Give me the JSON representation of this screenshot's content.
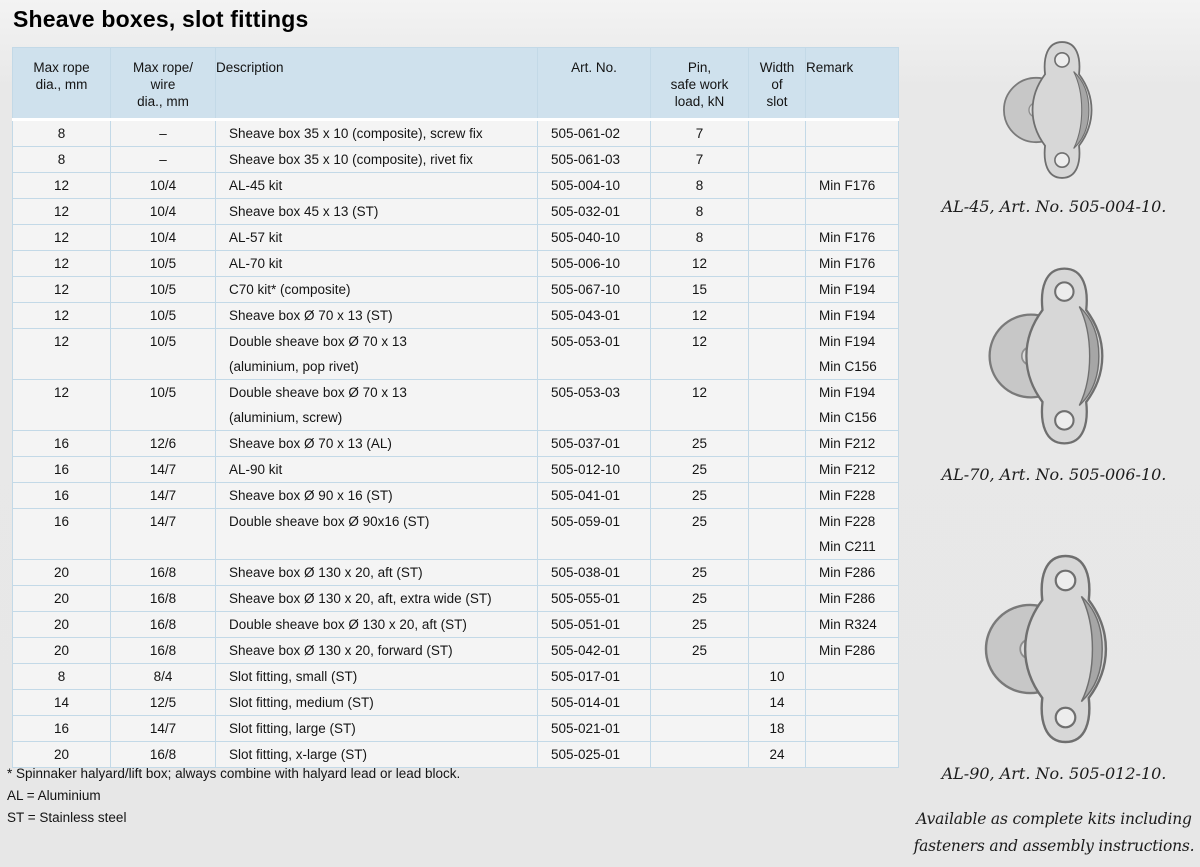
{
  "page_title": "Sheave boxes, slot fittings",
  "colors": {
    "header_bg": "#cfe1ed",
    "table_border": "#c3d9e7",
    "row_bg": "#f4f4f4",
    "page_bg": "#e7e7e7"
  },
  "table": {
    "columns": [
      {
        "key": "max_rope_dia",
        "label_lines": [
          "Max rope",
          "dia., mm"
        ]
      },
      {
        "key": "max_wire_dia",
        "label_lines": [
          "Max rope/",
          "wire",
          "dia., mm"
        ]
      },
      {
        "key": "description",
        "label_lines": [
          "Description"
        ]
      },
      {
        "key": "art_no",
        "label_lines": [
          "Art. No."
        ]
      },
      {
        "key": "pin_swl",
        "label_lines": [
          "Pin,",
          "safe work",
          "load, kN"
        ]
      },
      {
        "key": "slot_width",
        "label_lines": [
          "Width",
          "of",
          "slot"
        ]
      },
      {
        "key": "remark",
        "label_lines": [
          "Remark"
        ]
      }
    ],
    "rows": [
      {
        "max_rope_dia": "8",
        "max_wire_dia": "–",
        "description": [
          "Sheave box 35 x 10 (composite), screw fix"
        ],
        "art_no": "505-061-02",
        "pin_swl": "7",
        "slot_width": "",
        "remark": []
      },
      {
        "max_rope_dia": "8",
        "max_wire_dia": "–",
        "description": [
          "Sheave box 35 x 10 (composite), rivet fix"
        ],
        "art_no": "505-061-03",
        "pin_swl": "7",
        "slot_width": "",
        "remark": []
      },
      {
        "max_rope_dia": "12",
        "max_wire_dia": "10/4",
        "description": [
          "AL-45 kit"
        ],
        "art_no": "505-004-10",
        "pin_swl": "8",
        "slot_width": "",
        "remark": [
          "Min F176"
        ]
      },
      {
        "max_rope_dia": "12",
        "max_wire_dia": "10/4",
        "description": [
          "Sheave box 45 x 13 (ST)"
        ],
        "art_no": "505-032-01",
        "pin_swl": "8",
        "slot_width": "",
        "remark": []
      },
      {
        "max_rope_dia": "12",
        "max_wire_dia": "10/4",
        "description": [
          "AL-57 kit"
        ],
        "art_no": "505-040-10",
        "pin_swl": "8",
        "slot_width": "",
        "remark": [
          "Min F176"
        ]
      },
      {
        "max_rope_dia": "12",
        "max_wire_dia": "10/5",
        "description": [
          "AL-70 kit"
        ],
        "art_no": "505-006-10",
        "pin_swl": "12",
        "slot_width": "",
        "remark": [
          "Min F176"
        ]
      },
      {
        "max_rope_dia": "12",
        "max_wire_dia": "10/5",
        "description": [
          "C70 kit* (composite)"
        ],
        "art_no": "505-067-10",
        "pin_swl": "15",
        "slot_width": "",
        "remark": [
          "Min F194"
        ]
      },
      {
        "max_rope_dia": "12",
        "max_wire_dia": "10/5",
        "description": [
          "Sheave box Ø 70 x 13 (ST)"
        ],
        "art_no": "505-043-01",
        "pin_swl": "12",
        "slot_width": "",
        "remark": [
          "Min F194"
        ]
      },
      {
        "max_rope_dia": "12",
        "max_wire_dia": "10/5",
        "description": [
          "Double sheave box Ø 70 x 13",
          "(aluminium, pop rivet)"
        ],
        "art_no": "505-053-01",
        "pin_swl": "12",
        "slot_width": "",
        "remark": [
          "Min F194",
          "Min C156"
        ]
      },
      {
        "max_rope_dia": "12",
        "max_wire_dia": "10/5",
        "description": [
          "Double sheave box Ø 70 x 13",
          "(aluminium, screw)"
        ],
        "art_no": "505-053-03",
        "pin_swl": "12",
        "slot_width": "",
        "remark": [
          "Min F194",
          "Min C156"
        ]
      },
      {
        "max_rope_dia": "16",
        "max_wire_dia": "12/6",
        "description": [
          "Sheave box Ø 70 x 13 (AL)"
        ],
        "art_no": "505-037-01",
        "pin_swl": "25",
        "slot_width": "",
        "remark": [
          "Min F212"
        ]
      },
      {
        "max_rope_dia": "16",
        "max_wire_dia": "14/7",
        "description": [
          "AL-90 kit"
        ],
        "art_no": "505-012-10",
        "pin_swl": "25",
        "slot_width": "",
        "remark": [
          "Min F212"
        ]
      },
      {
        "max_rope_dia": "16",
        "max_wire_dia": "14/7",
        "description": [
          "Sheave box Ø 90 x 16 (ST)"
        ],
        "art_no": "505-041-01",
        "pin_swl": "25",
        "slot_width": "",
        "remark": [
          "Min F228"
        ]
      },
      {
        "max_rope_dia": "16",
        "max_wire_dia": "14/7",
        "description": [
          "Double sheave box Ø 90x16 (ST)"
        ],
        "art_no": "505-059-01",
        "pin_swl": "25",
        "slot_width": "",
        "remark": [
          "Min F228",
          "Min C211"
        ]
      },
      {
        "max_rope_dia": "20",
        "max_wire_dia": "16/8",
        "description": [
          "Sheave box Ø 130 x 20, aft (ST)"
        ],
        "art_no": "505-038-01",
        "pin_swl": "25",
        "slot_width": "",
        "remark": [
          "Min F286"
        ]
      },
      {
        "max_rope_dia": "20",
        "max_wire_dia": "16/8",
        "description": [
          "Sheave box Ø 130 x 20, aft, extra wide (ST)"
        ],
        "art_no": "505-055-01",
        "pin_swl": "25",
        "slot_width": "",
        "remark": [
          "Min F286"
        ]
      },
      {
        "max_rope_dia": "20",
        "max_wire_dia": "16/8",
        "description": [
          "Double sheave box Ø 130 x 20, aft (ST)"
        ],
        "art_no": "505-051-01",
        "pin_swl": "25",
        "slot_width": "",
        "remark": [
          "Min R324"
        ]
      },
      {
        "max_rope_dia": "20",
        "max_wire_dia": "16/8",
        "description": [
          "Sheave box Ø 130 x 20, forward (ST)"
        ],
        "art_no": "505-042-01",
        "pin_swl": "25",
        "slot_width": "",
        "remark": [
          "Min F286"
        ]
      },
      {
        "max_rope_dia": "8",
        "max_wire_dia": "8/4",
        "description": [
          "Slot fitting, small (ST)"
        ],
        "art_no": "505-017-01",
        "pin_swl": "",
        "slot_width": "10",
        "remark": []
      },
      {
        "max_rope_dia": "14",
        "max_wire_dia": "12/5",
        "description": [
          "Slot fitting, medium (ST)"
        ],
        "art_no": "505-014-01",
        "pin_swl": "",
        "slot_width": "14",
        "remark": []
      },
      {
        "max_rope_dia": "16",
        "max_wire_dia": "14/7",
        "description": [
          "Slot fitting, large (ST)"
        ],
        "art_no": "505-021-01",
        "pin_swl": "",
        "slot_width": "18",
        "remark": []
      },
      {
        "max_rope_dia": "20",
        "max_wire_dia": "16/8",
        "description": [
          "Slot fitting, x-large (ST)"
        ],
        "art_no": "505-025-01",
        "pin_swl": "",
        "slot_width": "24",
        "remark": []
      }
    ]
  },
  "footnotes": [
    "* Spinnaker halyard/lift box; always combine with halyard lead or lead block.",
    "AL = Aluminium",
    "ST = Stainless steel"
  ],
  "figures": [
    {
      "name": "AL-45",
      "caption": "AL-45, Art. No. 505-004-10."
    },
    {
      "name": "AL-70",
      "caption": "AL-70, Art. No. 505-006-10."
    },
    {
      "name": "AL-90",
      "caption": "AL-90, Art. No. 505-012-10."
    }
  ],
  "note_lines": [
    "Available as complete kits including",
    "fasteners and assembly instructions."
  ]
}
